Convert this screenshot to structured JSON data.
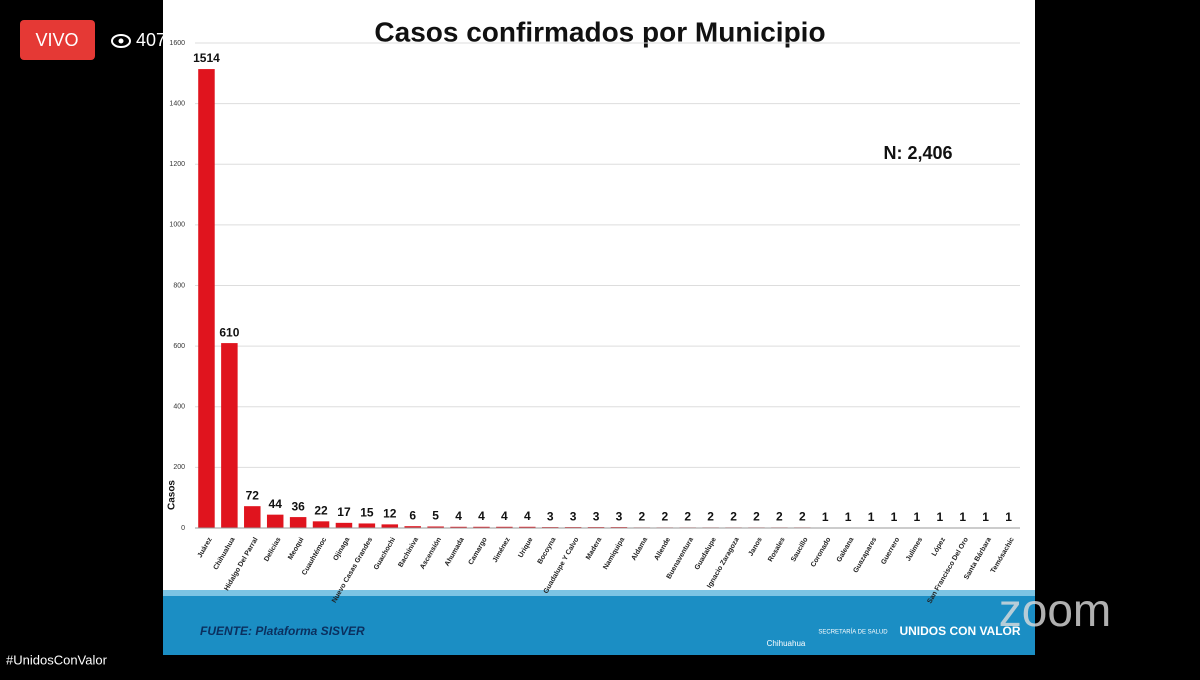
{
  "stream": {
    "live_badge": "VIVO",
    "viewers": "407",
    "hashtag": "#UnidosConValor",
    "watermark": "zoom"
  },
  "chart_data": {
    "type": "bar",
    "title": "Casos confirmados por Municipio",
    "y_label": "Casos",
    "annotation": "N: 2,406",
    "categories": [
      "Juárez",
      "Chihuahua",
      "Hidalgo Del Parral",
      "Delicias",
      "Meoqui",
      "Cuauhtémoc",
      "Ojinaga",
      "Nuevo Casas Grandes",
      "Guachochi",
      "Bachíniva",
      "Ascensión",
      "Ahumada",
      "Camargo",
      "Jiménez",
      "Urique",
      "Bocoyna",
      "Guadalupe Y Calvo",
      "Madera",
      "Namiquipa",
      "Aldama",
      "Allende",
      "Buenaventura",
      "Guadalupe",
      "Ignacio Zaragoza",
      "Janos",
      "Rosales",
      "Saucillo",
      "Coronado",
      "Galeana",
      "Guazapares",
      "Guerrero",
      "Julimes",
      "López",
      "San Francisco Del Oro",
      "Santa Bárbara",
      "Temósachic"
    ],
    "values": [
      1514,
      610,
      72,
      44,
      36,
      22,
      17,
      15,
      12,
      6,
      5,
      4,
      4,
      4,
      4,
      3,
      3,
      3,
      3,
      2,
      2,
      2,
      2,
      2,
      2,
      2,
      2,
      1,
      1,
      1,
      1,
      1,
      1,
      1,
      1,
      1
    ],
    "color": "#e0141e",
    "ylim": [
      0,
      1600
    ],
    "yticks": [
      0,
      200,
      400,
      600,
      800,
      1000,
      1200,
      1400,
      1600
    ],
    "grid": true
  },
  "footer": {
    "source": "FUENTE: Plataforma SISVER",
    "logo_state": "Chihuahua",
    "logo_ministry": "SECRETARÍA DE SALUD",
    "logo_campaign": "UNIDOS CON VALOR"
  }
}
